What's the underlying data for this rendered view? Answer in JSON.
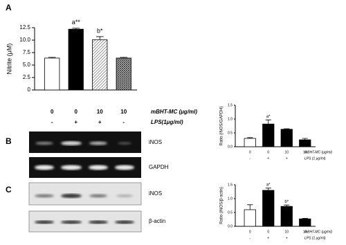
{
  "chart_data": [
    {
      "type": "bar",
      "panel": "A",
      "ylabel": "Nitrite (μM)",
      "categories": [
        "0",
        "0",
        "10",
        "10"
      ],
      "values": [
        6.4,
        12.2,
        10.1,
        6.4
      ],
      "errors": [
        0.15,
        0.2,
        0.6,
        0.15
      ],
      "annotations": [
        null,
        "a**",
        "b*",
        null
      ],
      "colors": [
        "#ffffff",
        "#000000",
        "#c8c8c8",
        "#707070"
      ],
      "patterns": [
        "none",
        "none",
        "diagonal",
        "cross"
      ],
      "ylim": [
        0,
        12.5
      ],
      "yticks": [
        0,
        2.5,
        {
          "value": 5,
          "label": "5.0"
        },
        7.5,
        {
          "value": 10,
          "label": "10.0"
        },
        12.5
      ],
      "x_rows": [
        {
          "label": "mBHT-MC (μg/ml)",
          "values": [
            "0",
            "0",
            "10",
            "10"
          ]
        },
        {
          "label": "LPS(1μg/ml)",
          "values": [
            "-",
            "+",
            "+",
            "-"
          ]
        }
      ]
    },
    {
      "type": "bar",
      "ylabel": "Ratio (iNOS/GAPDH)",
      "categories": [
        "0",
        "0",
        "10",
        "10"
      ],
      "values": [
        0.3,
        0.82,
        0.63,
        0.25
      ],
      "errors": [
        0.03,
        0.15,
        0.02,
        0.05
      ],
      "annotations": [
        null,
        "a*",
        null,
        null
      ],
      "colors": [
        "#ffffff",
        "#000000",
        "#000000",
        "#000000"
      ],
      "patterns": [
        "none",
        "none",
        "none",
        "none"
      ],
      "ylim": [
        0,
        1.5
      ],
      "yticks": [
        {
          "value": 0,
          "label": "0.0"
        },
        0.5,
        {
          "value": 1,
          "label": "1.0"
        },
        1.5
      ],
      "x_rows": [
        {
          "label": "mBHT-MC (μg/ml)",
          "values": [
            "0",
            "0",
            "10",
            "10"
          ]
        },
        {
          "label": "LPS (1 μg/ml)",
          "values": [
            "-",
            "+",
            "+",
            "-"
          ]
        }
      ]
    },
    {
      "type": "bar",
      "ylabel": "Ratio (iNOS/β-actin)",
      "categories": [
        "0",
        "0",
        "10",
        "10"
      ],
      "values": [
        0.6,
        1.3,
        0.72,
        0.27
      ],
      "errors": [
        0.18,
        0.08,
        0.05,
        0.02
      ],
      "annotations": [
        null,
        "a*",
        "b*",
        null
      ],
      "colors": [
        "#ffffff",
        "#000000",
        "#000000",
        "#000000"
      ],
      "patterns": [
        "none",
        "none",
        "none",
        "none"
      ],
      "ylim": [
        0,
        1.5
      ],
      "yticks": [
        {
          "value": 0,
          "label": "0.0"
        },
        0.5,
        {
          "value": 1,
          "label": "1.0"
        },
        1.5
      ],
      "x_rows": [
        {
          "label": "mBHT-MC (μg/ml)",
          "values": [
            "0",
            "0",
            "10",
            "10"
          ]
        },
        {
          "label": "LPS (1 μg/ml)",
          "values": [
            "-",
            "+",
            "+",
            "-"
          ]
        }
      ]
    }
  ],
  "blots": {
    "panel_b": "B",
    "panel_c": "C",
    "b_top": "iNOS",
    "b_bottom": "GAPDH",
    "c_top": "iNOS",
    "c_bottom": "β-actin"
  }
}
